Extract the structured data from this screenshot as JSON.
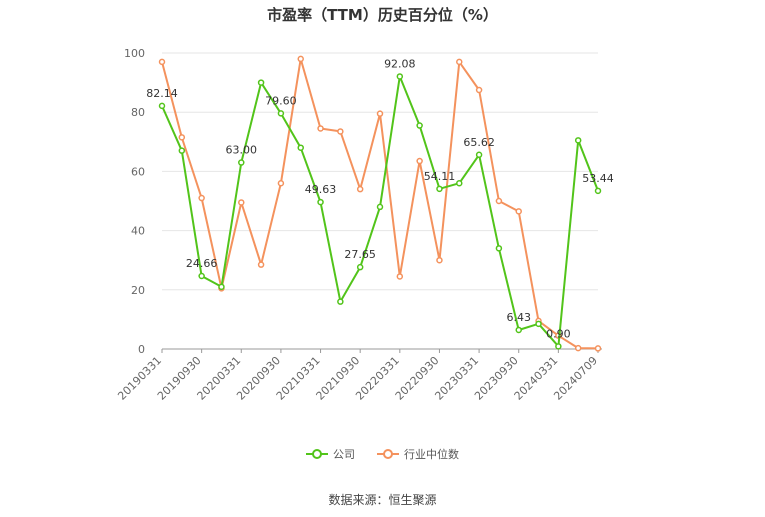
{
  "chart_data": {
    "type": "line",
    "title": "市盈率（TTM）历史百分位（%）",
    "xlabel": "",
    "ylabel": "",
    "ylim": [
      0,
      100
    ],
    "yticks": [
      0,
      20,
      40,
      60,
      80,
      100
    ],
    "x_tick_labels": [
      "20190331",
      "20190930",
      "20200331",
      "20200930",
      "20210331",
      "20210930",
      "20220331",
      "20220930",
      "20230331",
      "20230930",
      "20240331",
      "20240709"
    ],
    "grid": true,
    "legend_position": "bottom",
    "series": [
      {
        "name": "公司",
        "color": "#52c41a",
        "values": [
          82.14,
          67.0,
          24.66,
          21.0,
          63.0,
          90.0,
          79.6,
          68.0,
          49.63,
          16.0,
          27.65,
          48.0,
          92.08,
          75.5,
          54.11,
          56.0,
          65.62,
          34.0,
          6.43,
          8.5,
          0.9,
          70.5,
          53.44
        ],
        "labels": [
          "82.14",
          "",
          "24.66",
          "",
          "63.00",
          "",
          "79.60",
          "",
          "49.63",
          "",
          "27.65",
          "",
          "92.08",
          "",
          "54.11",
          "",
          "65.62",
          "",
          "6.43",
          "",
          "0.90",
          "",
          "53.44"
        ]
      },
      {
        "name": "行业中位数",
        "color": "#f4925d",
        "values": [
          97.0,
          71.5,
          51.0,
          20.5,
          49.5,
          28.5,
          56.0,
          98.0,
          74.5,
          73.5,
          54.0,
          79.5,
          24.5,
          63.5,
          30.0,
          97.0,
          87.5,
          50.0,
          46.5,
          9.5,
          4.5,
          0.3,
          0.2
        ]
      }
    ]
  },
  "legend": {
    "items": [
      {
        "label": "公司",
        "color": "#52c41a"
      },
      {
        "label": "行业中位数",
        "color": "#f4925d"
      }
    ]
  },
  "source": "数据来源：恒生聚源"
}
